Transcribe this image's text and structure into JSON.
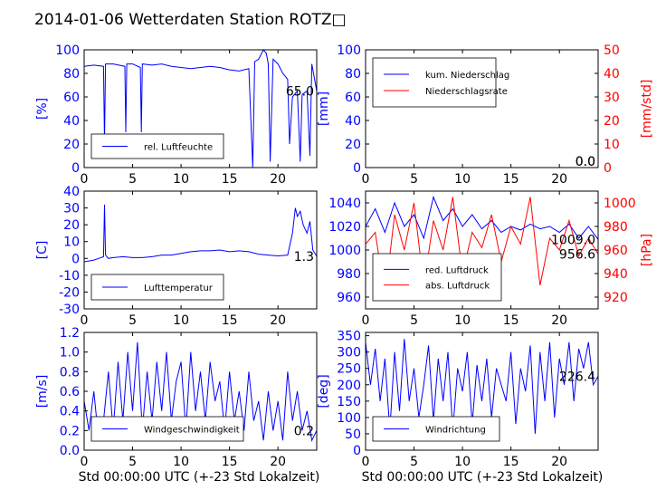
{
  "figure": {
    "title": "2014-01-06 Wetterdaten Station ROTZ□",
    "xlabel": "Std 00:00:00 UTC (+-23 Std Lokalzeit)"
  },
  "colors": {
    "primary": "#0000ff",
    "secondary": "#ff0000",
    "frame": "#000000"
  },
  "chart_data": [
    {
      "type": "line",
      "name": "humidity",
      "xlim": [
        0,
        24
      ],
      "xticks": [
        0,
        5,
        10,
        15,
        20
      ],
      "ylabel": "[%]",
      "ylim": [
        0,
        100
      ],
      "yticks": [
        0,
        20,
        40,
        60,
        80,
        100
      ],
      "legend": [
        "rel. Luftfeuchte"
      ],
      "legend_loc": "lower-left",
      "last_value": "65.0",
      "series": [
        {
          "axis": "left",
          "x": [
            0,
            1,
            2.0,
            2.1,
            2.2,
            3,
            4.2,
            4.3,
            4.4,
            5,
            5.8,
            5.9,
            6.0,
            7,
            8,
            9,
            10,
            11,
            12,
            13,
            14,
            15,
            16,
            17,
            17.4,
            17.6,
            18,
            18.5,
            18.8,
            19,
            19.2,
            19.5,
            20,
            20.5,
            21,
            21.2,
            21.5,
            22,
            22.3,
            22.5,
            23,
            23.3,
            23.5,
            24
          ],
          "y": [
            86,
            87,
            86,
            20,
            88,
            88,
            86,
            30,
            88,
            88,
            85,
            30,
            88,
            87,
            88,
            86,
            85,
            84,
            85,
            86,
            85,
            83,
            82,
            84,
            0,
            90,
            92,
            100,
            97,
            88,
            5,
            92,
            88,
            80,
            75,
            20,
            60,
            65,
            5,
            62,
            65,
            10,
            88,
            65
          ]
        }
      ]
    },
    {
      "type": "line",
      "name": "precipitation",
      "xlim": [
        0,
        24
      ],
      "xticks": [
        0,
        5,
        10,
        15,
        20
      ],
      "ylabel": "[mm]",
      "ylim": [
        0,
        100
      ],
      "yticks": [
        0,
        20,
        40,
        60,
        80,
        100
      ],
      "ylabel_right": "[mm/std]",
      "ylim_right": [
        0,
        50
      ],
      "yticks_right": [
        0,
        10,
        20,
        30,
        40,
        50
      ],
      "legend": [
        "kum. Niederschlag",
        "Niederschlagsrate"
      ],
      "legend_loc": "upper-left",
      "last_values": [
        "0.0",
        "0.0"
      ],
      "series": [
        {
          "name": "kum. Niederschlag",
          "axis": "left",
          "x": [
            0,
            24
          ],
          "y": [
            0,
            0
          ]
        },
        {
          "name": "Niederschlagsrate",
          "axis": "right",
          "x": [
            0,
            24
          ],
          "y": [
            0,
            0
          ]
        }
      ]
    },
    {
      "type": "line",
      "name": "temperature",
      "xlim": [
        0,
        24
      ],
      "xticks": [
        0,
        5,
        10,
        15,
        20
      ],
      "ylabel": "[C]",
      "ylim": [
        -30,
        40
      ],
      "yticks": [
        -30,
        -20,
        -10,
        0,
        10,
        20,
        30,
        40
      ],
      "legend": [
        "Lufttemperatur"
      ],
      "legend_loc": "lower-left",
      "last_value": "1.3",
      "series": [
        {
          "axis": "left",
          "x": [
            0,
            0.5,
            1,
            1.5,
            2.0,
            2.1,
            2.2,
            2.5,
            3,
            4,
            5,
            6,
            7,
            8,
            9,
            10,
            11,
            12,
            13,
            14,
            15,
            16,
            17,
            18,
            19,
            20,
            21,
            21.5,
            21.8,
            22,
            22.3,
            22.6,
            23,
            23.3,
            23.6,
            24
          ],
          "y": [
            -2,
            -1.5,
            -1,
            0,
            1,
            32,
            2,
            0,
            0.5,
            1,
            0.5,
            0.5,
            1,
            2,
            2,
            3,
            4,
            4.5,
            4.5,
            5,
            4,
            4.5,
            4,
            2.5,
            2,
            1.5,
            2,
            15,
            30,
            25,
            28,
            20,
            15,
            22,
            5,
            1.3
          ]
        }
      ]
    },
    {
      "type": "line",
      "name": "pressure",
      "xlim": [
        0,
        24
      ],
      "xticks": [
        0,
        5,
        10,
        15,
        20
      ],
      "ylim": [
        950,
        1050
      ],
      "yticks": [
        960,
        980,
        1000,
        1020,
        1040
      ],
      "ylabel_right": "[hPa]",
      "ylim_right": [
        910,
        1010
      ],
      "yticks_right": [
        920,
        940,
        960,
        980,
        1000
      ],
      "legend": [
        "red. Luftdruck",
        "abs. Luftdruck"
      ],
      "legend_loc": "lower-left",
      "last_values": [
        "1009.0",
        "956.6"
      ],
      "series": [
        {
          "name": "red. Luftdruck",
          "axis": "left",
          "x": [
            0,
            1,
            2,
            3,
            4,
            5,
            6,
            7,
            8,
            9,
            10,
            11,
            12,
            13,
            14,
            15,
            16,
            17,
            18,
            19,
            20,
            21,
            22,
            23,
            24
          ],
          "y": [
            1020,
            1035,
            1015,
            1040,
            1020,
            1030,
            1010,
            1045,
            1025,
            1035,
            1020,
            1030,
            1018,
            1025,
            1015,
            1020,
            1017,
            1022,
            1018,
            1020,
            1015,
            1022,
            1010,
            1020,
            1009
          ]
        },
        {
          "name": "abs. Luftdruck",
          "axis": "right",
          "x": [
            0,
            1,
            2,
            3,
            4,
            5,
            6,
            7,
            8,
            9,
            10,
            11,
            12,
            13,
            14,
            15,
            16,
            17,
            18,
            19,
            20,
            21,
            22,
            23,
            24
          ],
          "y": [
            965,
            975,
            920,
            990,
            960,
            1000,
            930,
            985,
            960,
            1005,
            940,
            975,
            962,
            990,
            950,
            980,
            965,
            1005,
            930,
            970,
            960,
            985,
            955,
            970,
            956.6
          ]
        }
      ]
    },
    {
      "type": "line",
      "name": "windspeed",
      "xlim": [
        0,
        24
      ],
      "xticks": [
        0,
        5,
        10,
        15,
        20
      ],
      "ylabel": "[m/s]",
      "ylim": [
        0,
        1.2
      ],
      "yticks": [
        0.0,
        0.2,
        0.4,
        0.6,
        0.8,
        1.0,
        1.2
      ],
      "legend": [
        "Windgeschwindigkeit"
      ],
      "legend_loc": "lower-left",
      "last_value": "0.2",
      "series": [
        {
          "axis": "left",
          "x": [
            0,
            0.5,
            1,
            1.5,
            2,
            2.5,
            3,
            3.5,
            4,
            4.5,
            5,
            5.5,
            6,
            6.5,
            7,
            7.5,
            8,
            8.5,
            9,
            9.5,
            10,
            10.5,
            11,
            11.5,
            12,
            12.5,
            13,
            13.5,
            14,
            14.5,
            15,
            15.5,
            16,
            16.5,
            17,
            17.5,
            18,
            18.5,
            19,
            19.5,
            20,
            20.5,
            21,
            21.5,
            22,
            22.5,
            23,
            23.5,
            24
          ],
          "y": [
            0.5,
            0.2,
            0.6,
            0.1,
            0.3,
            0.8,
            0.2,
            0.9,
            0.3,
            1.0,
            0.4,
            1.1,
            0.2,
            0.8,
            0.3,
            0.9,
            0.4,
            1.0,
            0.3,
            0.7,
            0.9,
            0.2,
            1.0,
            0.4,
            0.8,
            0.3,
            0.9,
            0.5,
            0.7,
            0.2,
            0.8,
            0.3,
            0.6,
            0.2,
            0.8,
            0.3,
            0.5,
            0.1,
            0.6,
            0.2,
            0.5,
            0.1,
            0.8,
            0.3,
            0.6,
            0.2,
            0.4,
            0.1,
            0.2
          ]
        }
      ]
    },
    {
      "type": "line",
      "name": "winddirection",
      "xlim": [
        0,
        24
      ],
      "xticks": [
        0,
        5,
        10,
        15,
        20
      ],
      "ylabel": "[deg]",
      "ylim": [
        0,
        360
      ],
      "yticks": [
        0,
        50,
        100,
        150,
        200,
        250,
        300,
        350
      ],
      "legend": [
        "Windrichtung"
      ],
      "legend_loc": "lower-left",
      "last_value": "226.4",
      "series": [
        {
          "axis": "left",
          "x": [
            0,
            0.5,
            1,
            1.5,
            2,
            2.5,
            3,
            3.5,
            4,
            4.5,
            5,
            5.5,
            6,
            6.5,
            7,
            7.5,
            8,
            8.5,
            9,
            9.5,
            10,
            10.5,
            11,
            11.5,
            12,
            12.5,
            13,
            13.5,
            14,
            14.5,
            15,
            15.5,
            16,
            16.5,
            17,
            17.5,
            18,
            18.5,
            19,
            19.5,
            20,
            20.5,
            21,
            21.5,
            22,
            22.5,
            23,
            23.5,
            24
          ],
          "y": [
            330,
            200,
            310,
            150,
            280,
            60,
            300,
            120,
            340,
            150,
            250,
            100,
            200,
            320,
            90,
            280,
            150,
            300,
            60,
            250,
            180,
            300,
            80,
            260,
            150,
            280,
            100,
            250,
            200,
            150,
            300,
            80,
            250,
            180,
            320,
            50,
            300,
            150,
            330,
            100,
            280,
            200,
            330,
            150,
            310,
            250,
            330,
            200,
            226
          ]
        }
      ]
    }
  ]
}
